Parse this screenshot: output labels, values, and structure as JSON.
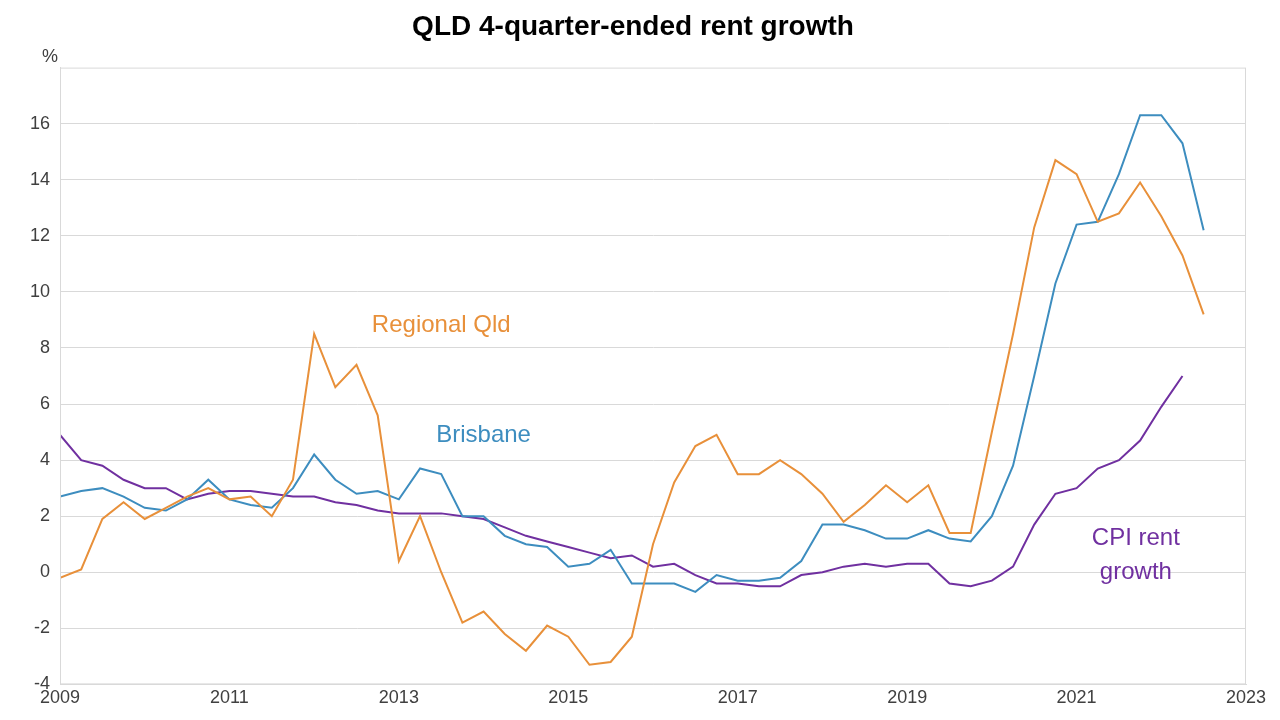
{
  "chart_data": {
    "type": "line",
    "title": "QLD 4-quarter-ended rent growth",
    "ylabel": "%",
    "x": [
      2009,
      2009.25,
      2009.5,
      2009.75,
      2010,
      2010.25,
      2010.5,
      2010.75,
      2011,
      2011.25,
      2011.5,
      2011.75,
      2012,
      2012.25,
      2012.5,
      2012.75,
      2013,
      2013.25,
      2013.5,
      2013.75,
      2014,
      2014.25,
      2014.5,
      2014.75,
      2015,
      2015.25,
      2015.5,
      2015.75,
      2016,
      2016.25,
      2016.5,
      2016.75,
      2017,
      2017.25,
      2017.5,
      2017.75,
      2018,
      2018.25,
      2018.5,
      2018.75,
      2019,
      2019.25,
      2019.5,
      2019.75,
      2020,
      2020.25,
      2020.5,
      2020.75,
      2021,
      2021.25,
      2021.5,
      2021.75,
      2022,
      2022.25,
      2022.5
    ],
    "series": [
      {
        "name": "Regional Qld",
        "color": "#e8903a",
        "values": [
          -0.2,
          0.1,
          1.9,
          2.5,
          1.9,
          2.3,
          2.7,
          3.0,
          2.6,
          2.7,
          2.0,
          3.3,
          8.5,
          6.6,
          7.4,
          5.6,
          0.4,
          2.0,
          0.0,
          -1.8,
          -1.4,
          -2.2,
          -2.8,
          -1.9,
          -2.3,
          -3.3,
          -3.2,
          -2.3,
          1.0,
          3.2,
          4.5,
          4.9,
          3.5,
          3.5,
          4.0,
          3.5,
          2.8,
          1.8,
          2.4,
          3.1,
          2.5,
          3.1,
          1.4,
          1.4,
          5.0,
          8.5,
          12.3,
          14.7,
          14.2,
          12.5,
          12.8,
          13.9,
          12.7,
          11.3,
          9.2
        ]
      },
      {
        "name": "Brisbane",
        "color": "#3d8dbf",
        "values": [
          2.7,
          2.9,
          3.0,
          2.7,
          2.3,
          2.2,
          2.6,
          3.3,
          2.6,
          2.4,
          2.3,
          3.0,
          4.2,
          3.3,
          2.8,
          2.9,
          2.6,
          3.7,
          3.5,
          2.0,
          2.0,
          1.3,
          1.0,
          0.9,
          0.2,
          0.3,
          0.8,
          -0.4,
          -0.4,
          -0.4,
          -0.7,
          -0.1,
          -0.3,
          -0.3,
          -0.2,
          0.4,
          1.7,
          1.7,
          1.5,
          1.2,
          1.2,
          1.5,
          1.2,
          1.1,
          2.0,
          3.8,
          7.0,
          10.3,
          12.4,
          12.5,
          14.2,
          16.3,
          16.3,
          15.3,
          12.2
        ]
      },
      {
        "name": "CPI rent growth",
        "color": "#7030a0",
        "values": [
          4.9,
          4.0,
          3.8,
          3.3,
          3.0,
          3.0,
          2.6,
          2.8,
          2.9,
          2.9,
          2.8,
          2.7,
          2.7,
          2.5,
          2.4,
          2.2,
          2.1,
          2.1,
          2.1,
          2.0,
          1.9,
          1.6,
          1.3,
          1.1,
          0.9,
          0.7,
          0.5,
          0.6,
          0.2,
          0.3,
          -0.1,
          -0.4,
          -0.4,
          -0.5,
          -0.5,
          -0.1,
          0.0,
          0.2,
          0.3,
          0.2,
          0.3,
          0.3,
          -0.4,
          -0.5,
          -0.3,
          0.2,
          1.7,
          2.8,
          3.0,
          3.7,
          4.0,
          4.7,
          5.9,
          7.0,
          null
        ]
      }
    ],
    "xlim": [
      2009,
      2023
    ],
    "xticks": [
      2009,
      2011,
      2013,
      2015,
      2017,
      2019,
      2021,
      2023
    ],
    "ylim": [
      -4,
      18
    ],
    "yticks": [
      -4,
      -2,
      0,
      2,
      4,
      6,
      8,
      10,
      12,
      14,
      16
    ],
    "grid": "y"
  }
}
